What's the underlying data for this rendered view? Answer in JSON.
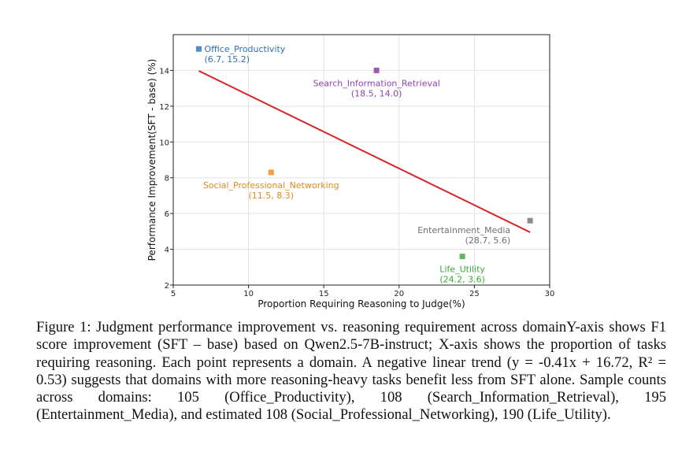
{
  "chart_data": {
    "type": "scatter",
    "title": "",
    "xlabel": "Proportion Requiring Reasoning to Judge(%)",
    "ylabel": "Performance Improvement(SFT - base) (%)",
    "xlim": [
      5,
      30
    ],
    "ylim": [
      2,
      16
    ],
    "xticks": [
      5,
      10,
      15,
      20,
      25,
      30
    ],
    "yticks": [
      2,
      4,
      6,
      8,
      10,
      12,
      14
    ],
    "grid": true,
    "legend": "none",
    "points": [
      {
        "label": "Office_Productivity",
        "coord_label": "(6.7, 15.2)",
        "x": 6.7,
        "y": 15.2,
        "color": "#4f8cc9",
        "label_pos": "right"
      },
      {
        "label": "Search_Information_Retrieval",
        "coord_label": "(18.5, 14.0)",
        "x": 18.5,
        "y": 14.0,
        "color": "#9b59b6",
        "label_pos": "below"
      },
      {
        "label": "Social_Professional_Networking",
        "coord_label": "(11.5, 8.3)",
        "x": 11.5,
        "y": 8.3,
        "color": "#f0a040",
        "label_pos": "below"
      },
      {
        "label": "Entertainment_Media",
        "coord_label": "(28.7, 5.6)",
        "x": 28.7,
        "y": 5.6,
        "color": "#8c8c8c",
        "label_pos": "below-left"
      },
      {
        "label": "Life_Utility",
        "coord_label": "(24.2, 3.6)",
        "x": 24.2,
        "y": 3.6,
        "color": "#5cb85c",
        "label_pos": "below"
      }
    ],
    "trendline": {
      "slope": -0.41,
      "intercept": 16.72,
      "x_range": [
        6.7,
        28.7
      ],
      "color": "#d62728"
    },
    "label_colors": {
      "Office_Productivity": "#2f6fb3",
      "Search_Information_Retrieval": "#8e44ad",
      "Social_Professional_Networking": "#e08a1e",
      "Entertainment_Media": "#707070",
      "Life_Utility": "#3aa83a"
    }
  },
  "caption": "Figure 1: Judgment performance improvement vs. reasoning requirement across domainY-axis shows F1 score improvement (SFT – base) based on Qwen2.5-7B-instruct; X-axis shows the proportion of tasks requiring reasoning. Each point represents a domain. A negative linear trend (y = -0.41x + 16.72, R² = 0.53) suggests that domains with more reasoning-heavy tasks benefit less from SFT alone. Sample counts across domains: 105 (Office_Productivity), 108 (Search_Information_Retrieval), 195 (Entertainment_Media), and estimated 108 (Social_Professional_Networking), 190 (Life_Utility)."
}
